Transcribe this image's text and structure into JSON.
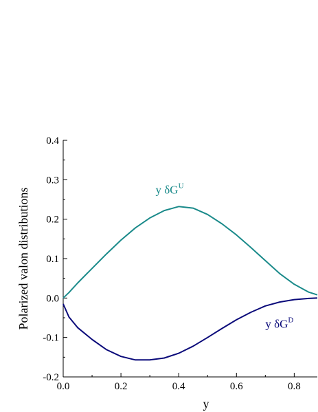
{
  "chart_data": {
    "type": "line",
    "title": "",
    "xlabel": "y",
    "ylabel": "Polarized valon distributions",
    "xlim": [
      0.0,
      0.88
    ],
    "ylim": [
      -0.2,
      0.4
    ],
    "x_ticks": [
      "0.0",
      "0.2",
      "0.4",
      "0.6",
      "0.8"
    ],
    "x_tick_values": [
      0.0,
      0.2,
      0.4,
      0.6,
      0.8
    ],
    "y_ticks": [
      "-0.2",
      "-0.1",
      "0.0",
      "0.1",
      "0.2",
      "0.3",
      "0.4"
    ],
    "y_tick_values": [
      -0.2,
      -0.1,
      0.0,
      0.1,
      0.2,
      0.3,
      0.4
    ],
    "grid": false,
    "legend": "none",
    "series": [
      {
        "name": "U",
        "label_prefix": "y δG",
        "label_sup": "U",
        "label_at": [
          0.32,
          0.265
        ],
        "color": "#1a8a8a",
        "x": [
          0.0,
          0.02,
          0.05,
          0.1,
          0.15,
          0.2,
          0.25,
          0.3,
          0.35,
          0.4,
          0.45,
          0.5,
          0.55,
          0.6,
          0.65,
          0.7,
          0.75,
          0.8,
          0.85,
          0.88
        ],
        "y": [
          0.0,
          0.014,
          0.038,
          0.075,
          0.112,
          0.147,
          0.178,
          0.203,
          0.222,
          0.232,
          0.228,
          0.212,
          0.188,
          0.16,
          0.128,
          0.095,
          0.062,
          0.035,
          0.015,
          0.008
        ]
      },
      {
        "name": "D",
        "label_prefix": "y δG",
        "label_sup": "D",
        "label_at": [
          0.7,
          -0.075
        ],
        "color": "#0a0a7a",
        "x": [
          0.0,
          0.02,
          0.05,
          0.1,
          0.15,
          0.2,
          0.25,
          0.3,
          0.35,
          0.4,
          0.45,
          0.5,
          0.55,
          0.6,
          0.65,
          0.7,
          0.75,
          0.8,
          0.85,
          0.88
        ],
        "y": [
          -0.015,
          -0.048,
          -0.075,
          -0.105,
          -0.131,
          -0.148,
          -0.157,
          -0.157,
          -0.152,
          -0.14,
          -0.122,
          -0.1,
          -0.077,
          -0.055,
          -0.036,
          -0.02,
          -0.01,
          -0.004,
          -0.001,
          0.0
        ]
      }
    ]
  }
}
